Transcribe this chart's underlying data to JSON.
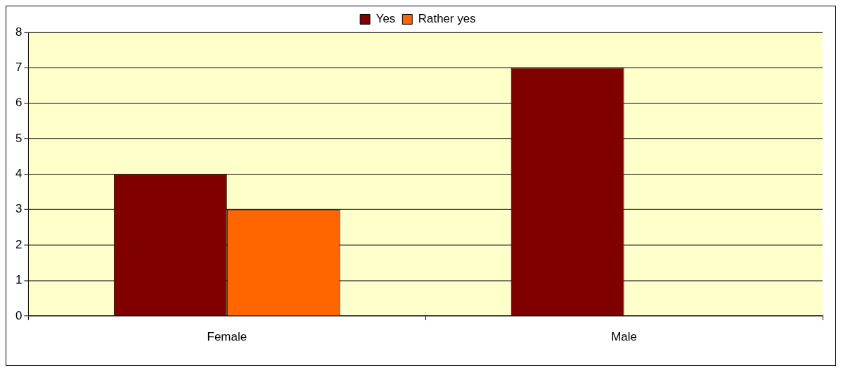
{
  "chart_data": {
    "type": "bar",
    "categories": [
      "Female",
      "Male"
    ],
    "series": [
      {
        "name": "Yes",
        "color": "#800000",
        "values": [
          4,
          7
        ]
      },
      {
        "name": "Rather yes",
        "color": "#ff6600",
        "values": [
          3,
          0
        ]
      }
    ],
    "ylim": [
      0,
      8
    ],
    "yticks": [
      0,
      1,
      2,
      3,
      4,
      5,
      6,
      7,
      8
    ],
    "grid": "y",
    "legend": "top"
  }
}
